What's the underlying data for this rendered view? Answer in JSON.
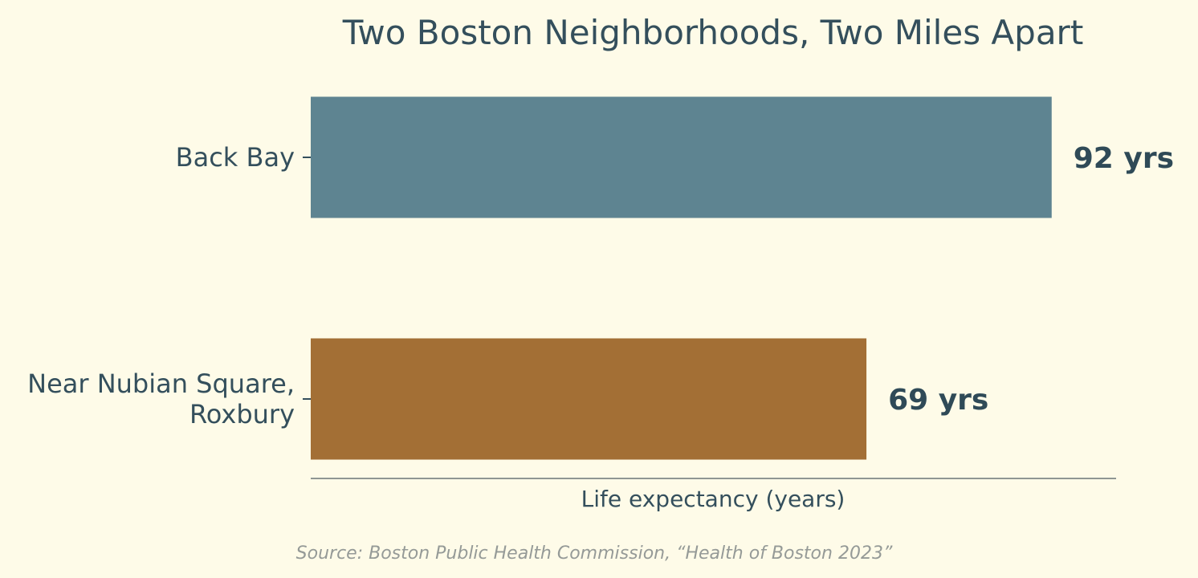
{
  "chart_data": {
    "type": "bar",
    "orientation": "horizontal",
    "title": "Two Boston Neighborhoods, Two Miles Apart",
    "xlabel": "Life expectancy (years)",
    "ylabel": "",
    "xlim": [
      0,
      100
    ],
    "grid": false,
    "categories": [
      {
        "lines": [
          "Back Bay"
        ],
        "value": 92,
        "value_label": "92 yrs",
        "color": "#5e8491"
      },
      {
        "lines": [
          "Near Nubian Square,",
          "Roxbury"
        ],
        "value": 69,
        "value_label": "69 yrs",
        "color": "#a36f35"
      }
    ],
    "source": "Source: Boston Public Health Commission, “Health of Boston 2023”"
  },
  "colors": {
    "background": "#fefbe8",
    "text": "#344f5c",
    "axis": "#8f9693",
    "source": "#959a97"
  }
}
